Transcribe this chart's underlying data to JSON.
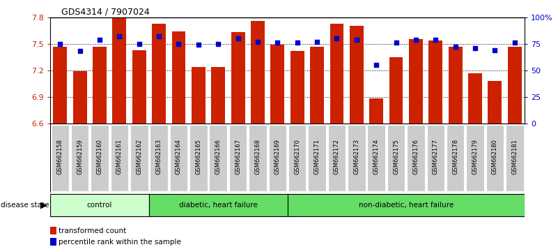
{
  "title": "GDS4314 / 7907024",
  "samples": [
    "GSM662158",
    "GSM662159",
    "GSM662160",
    "GSM662161",
    "GSM662162",
    "GSM662163",
    "GSM662164",
    "GSM662165",
    "GSM662166",
    "GSM662167",
    "GSM662168",
    "GSM662169",
    "GSM662170",
    "GSM662171",
    "GSM662172",
    "GSM662173",
    "GSM662174",
    "GSM662175",
    "GSM662176",
    "GSM662177",
    "GSM662178",
    "GSM662179",
    "GSM662180",
    "GSM662181"
  ],
  "red_values": [
    7.47,
    7.19,
    7.47,
    7.79,
    7.43,
    7.73,
    7.64,
    7.24,
    7.24,
    7.63,
    7.76,
    7.49,
    7.42,
    7.47,
    7.73,
    7.7,
    6.88,
    7.35,
    7.55,
    7.54,
    7.47,
    7.17,
    7.08,
    7.47
  ],
  "blue_values": [
    75,
    68,
    79,
    82,
    75,
    82,
    75,
    74,
    75,
    80,
    77,
    76,
    76,
    77,
    80,
    79,
    55,
    76,
    79,
    79,
    72,
    71,
    69,
    76
  ],
  "ylim_left": [
    6.6,
    7.8
  ],
  "ylim_right": [
    0,
    100
  ],
  "yticks_left": [
    6.6,
    6.9,
    7.2,
    7.5,
    7.8
  ],
  "yticks_right": [
    0,
    25,
    50,
    75,
    100
  ],
  "ytick_right_labels": [
    "0",
    "25",
    "50",
    "75",
    "100%"
  ],
  "bar_color": "#CC2200",
  "dot_color": "#0000CC",
  "label_bg_color": "#CCCCCC",
  "group_info": [
    {
      "start": 0,
      "end": 5,
      "label": "control",
      "color": "#CCFFCC"
    },
    {
      "start": 5,
      "end": 12,
      "label": "diabetic, heart failure",
      "color": "#66DD66"
    },
    {
      "start": 12,
      "end": 24,
      "label": "non-diabetic, heart failure",
      "color": "#66DD66"
    }
  ],
  "legend_items": [
    {
      "color": "#CC2200",
      "label": "transformed count"
    },
    {
      "color": "#0000CC",
      "label": "percentile rank within the sample"
    }
  ]
}
